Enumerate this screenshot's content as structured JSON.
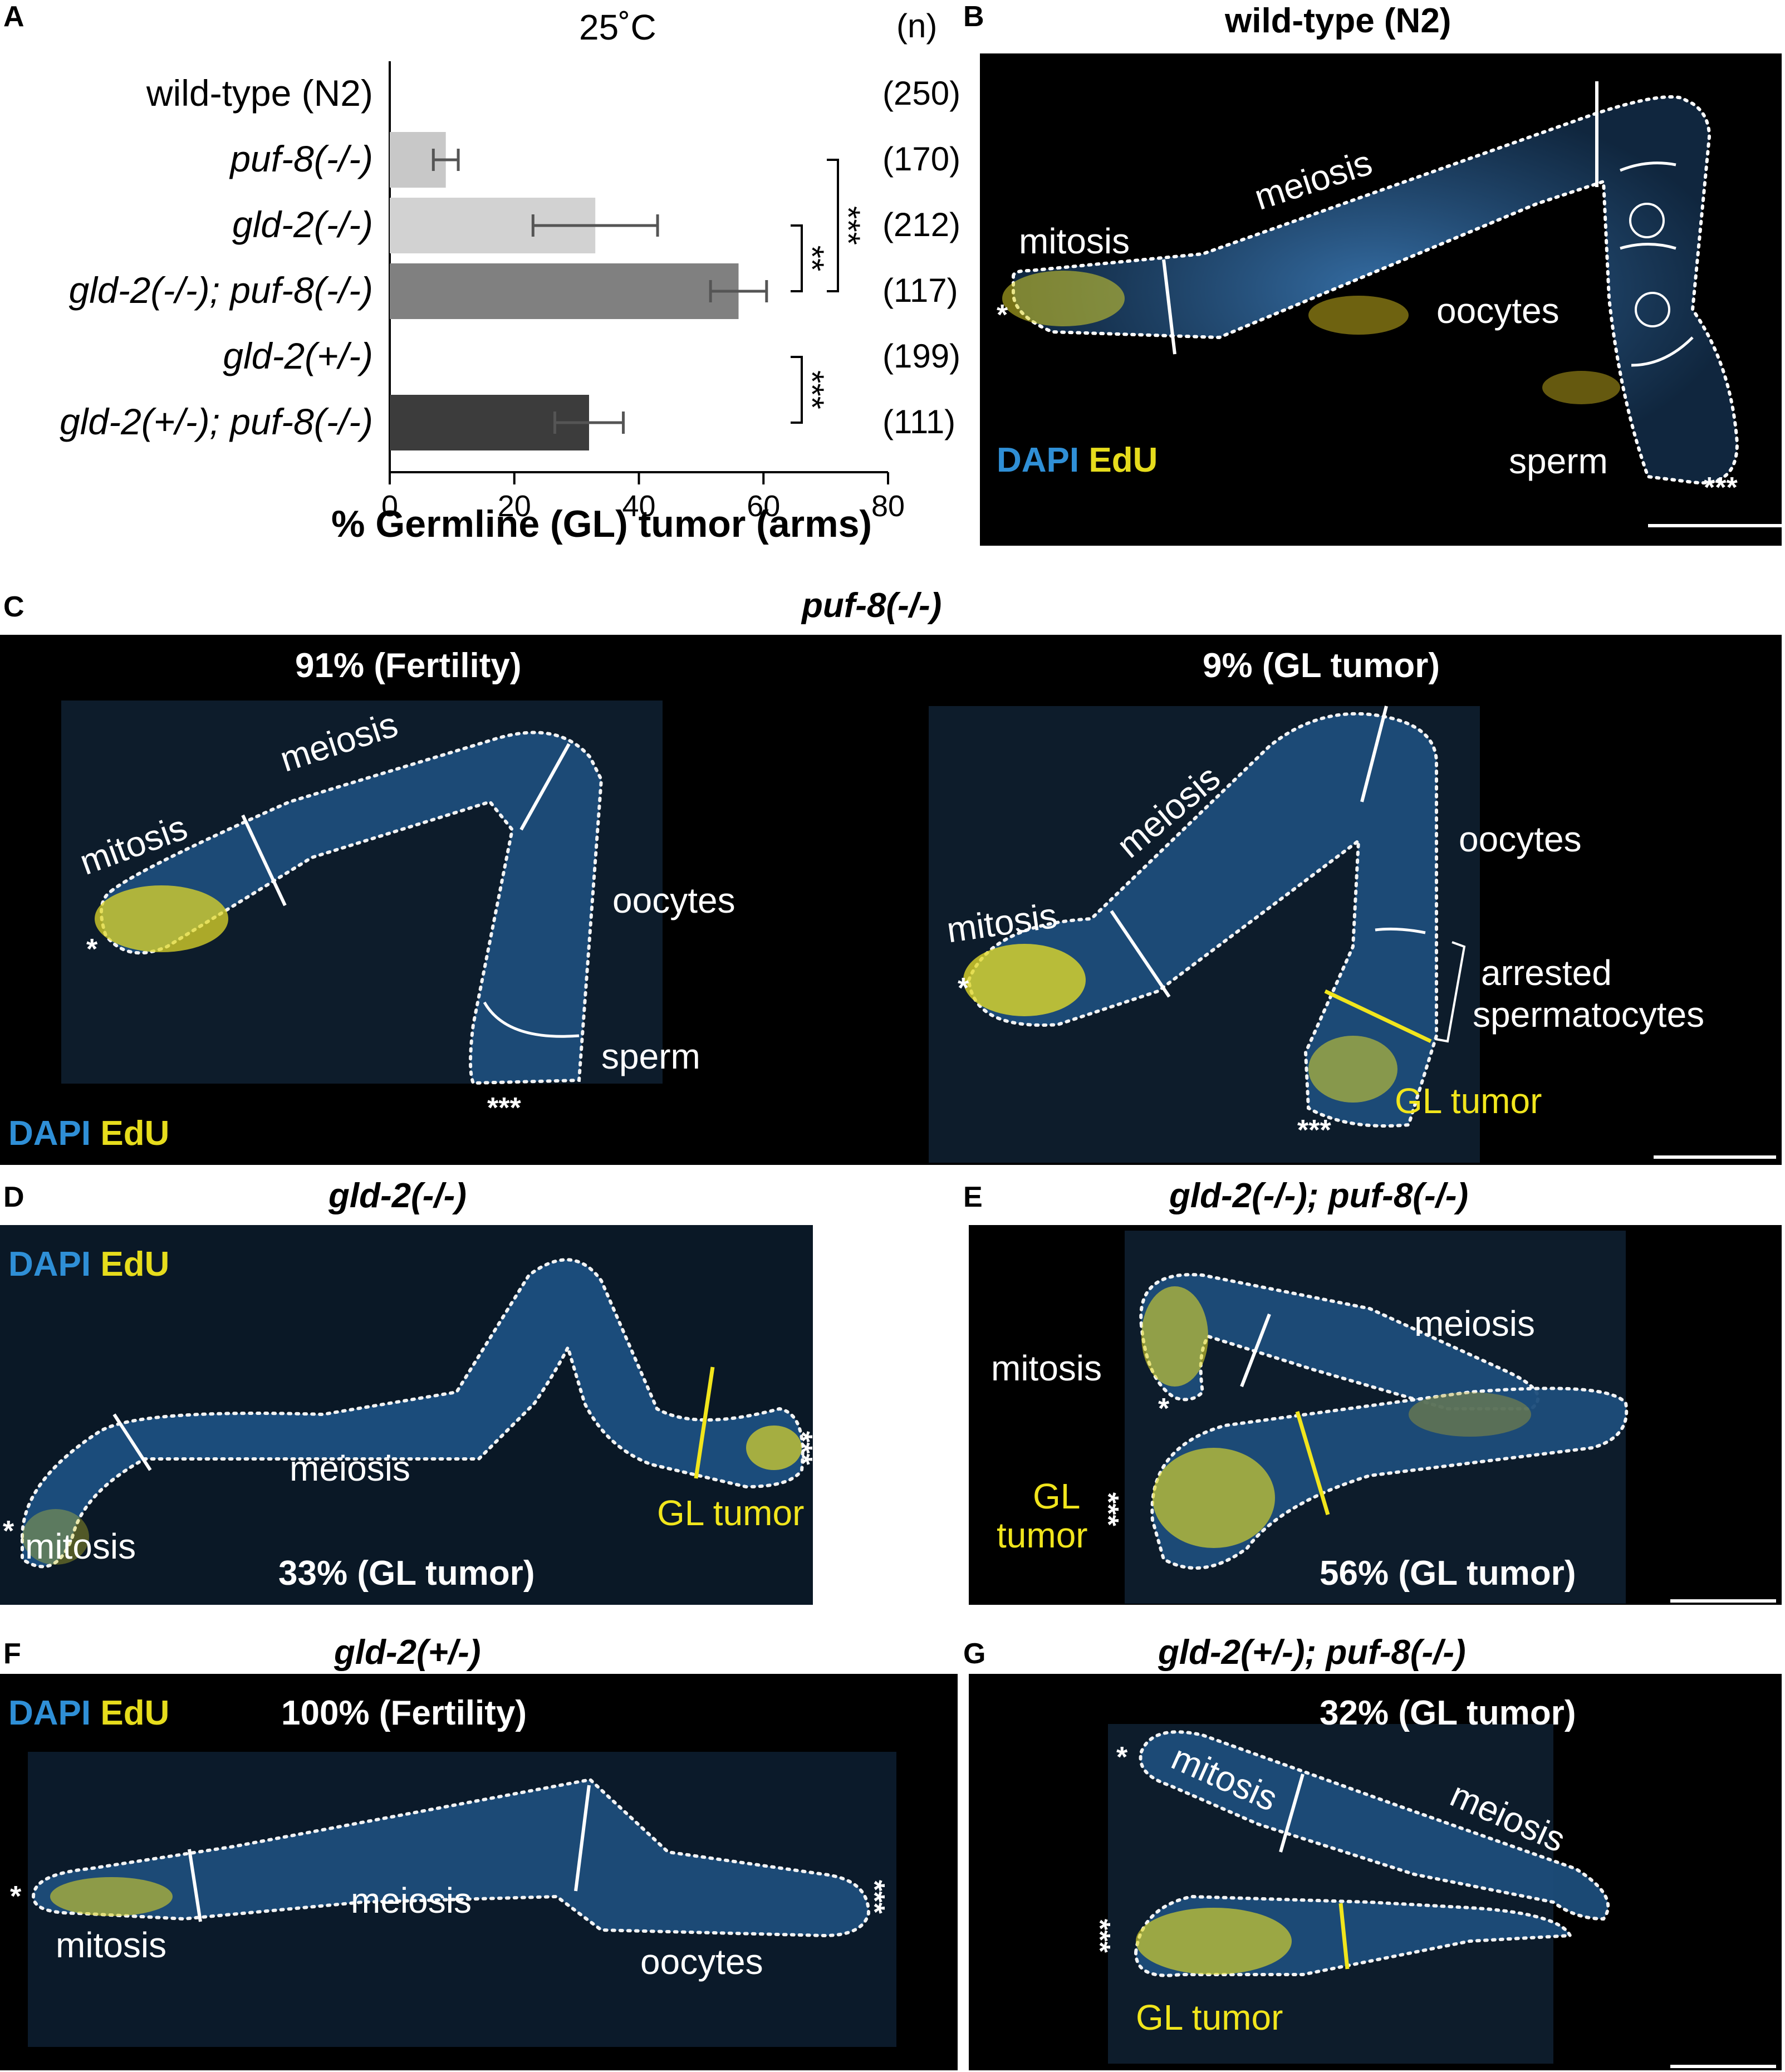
{
  "panel_letters": {
    "a": "A",
    "b": "B",
    "c": "C",
    "d": "D",
    "e": "E",
    "f": "F",
    "g": "G"
  },
  "chart_data": {
    "type": "bar",
    "title": "25˚C",
    "n_header": "(n)",
    "categories": [
      "wild-type (N2)",
      "puf-8(-/-)",
      "gld-2(-/-)",
      "gld-2(-/-); puf-8(-/-)",
      "gld-2(+/-)",
      "gld-2(+/-); puf-8(-/-)"
    ],
    "italic": [
      false,
      true,
      true,
      true,
      true,
      true
    ],
    "values": [
      0,
      9,
      33,
      56,
      0,
      32
    ],
    "errors": [
      0,
      2,
      10,
      4.5,
      0,
      5.5
    ],
    "n": [
      "(250)",
      "(170)",
      "(212)",
      "(117)",
      "(199)",
      "(111)"
    ],
    "colors": [
      "#c8c8c8",
      "#c8c8c8",
      "#d2d2d2",
      "#808080",
      "#c8c8c8",
      "#3c3c3c"
    ],
    "xlabel": "% Germline (GL) tumor (arms)",
    "ylabel": "",
    "xlim": [
      0,
      80
    ],
    "xticks": [
      "0",
      "20",
      "40",
      "60",
      "80"
    ],
    "significance": [
      {
        "from": 2,
        "to": 3,
        "label": "**"
      },
      {
        "from": 1,
        "to": 3,
        "label": "***"
      },
      {
        "from": 4,
        "to": 5,
        "label": "***"
      }
    ]
  },
  "panel_b": {
    "title": "wild-type (N2)",
    "labels": {
      "mitosis": "mitosis",
      "meiosis": "meiosis",
      "oocytes": "oocytes",
      "sperm": "sperm"
    },
    "distal_mark": "*",
    "proximal_mark": "***",
    "stain_dapi": "DAPI",
    "stain_edu": "EdU"
  },
  "panel_c": {
    "title": "puf-8(-/-)",
    "left_caption": "91% (Fertility)",
    "right_caption": "9% (GL tumor)",
    "left_labels": {
      "mitosis": "mitosis",
      "meiosis": "meiosis",
      "oocytes": "oocytes",
      "sperm": "sperm"
    },
    "right_labels": {
      "mitosis": "mitosis",
      "meiosis": "meiosis",
      "oocytes": "oocytes",
      "arrested1": "arrested",
      "arrested2": "spermatocytes",
      "tumor": "GL tumor"
    },
    "distal_mark": "*",
    "proximal_mark": "***",
    "stain_dapi": "DAPI",
    "stain_edu": "EdU"
  },
  "panel_d": {
    "title": "gld-2(-/-)",
    "caption": "33% (GL tumor)",
    "labels": {
      "mitosis": "mitosis",
      "meiosis": "meiosis",
      "tumor": "GL tumor"
    },
    "distal_mark": "*",
    "proximal_mark": "***",
    "stain_dapi": "DAPI",
    "stain_edu": "EdU"
  },
  "panel_e": {
    "title": "gld-2(-/-); puf-8(-/-)",
    "caption": "56% (GL tumor)",
    "labels": {
      "mitosis": "mitosis",
      "meiosis": "meiosis",
      "tumor1": "GL",
      "tumor2": "tumor"
    },
    "distal_mark": "*",
    "proximal_mark": "***"
  },
  "panel_f": {
    "title": "gld-2(+/-)",
    "caption": "100% (Fertility)",
    "labels": {
      "mitosis": "mitosis",
      "meiosis": "meiosis",
      "oocytes": "oocytes"
    },
    "distal_mark": "*",
    "proximal_mark": "***",
    "stain_dapi": "DAPI",
    "stain_edu": "EdU"
  },
  "panel_g": {
    "title": "gld-2(+/-); puf-8(-/-)",
    "caption": "32% (GL tumor)",
    "labels": {
      "mitosis": "mitosis",
      "meiosis": "meiosis",
      "tumor": "GL tumor"
    },
    "distal_mark": "*",
    "proximal_mark": "***"
  }
}
